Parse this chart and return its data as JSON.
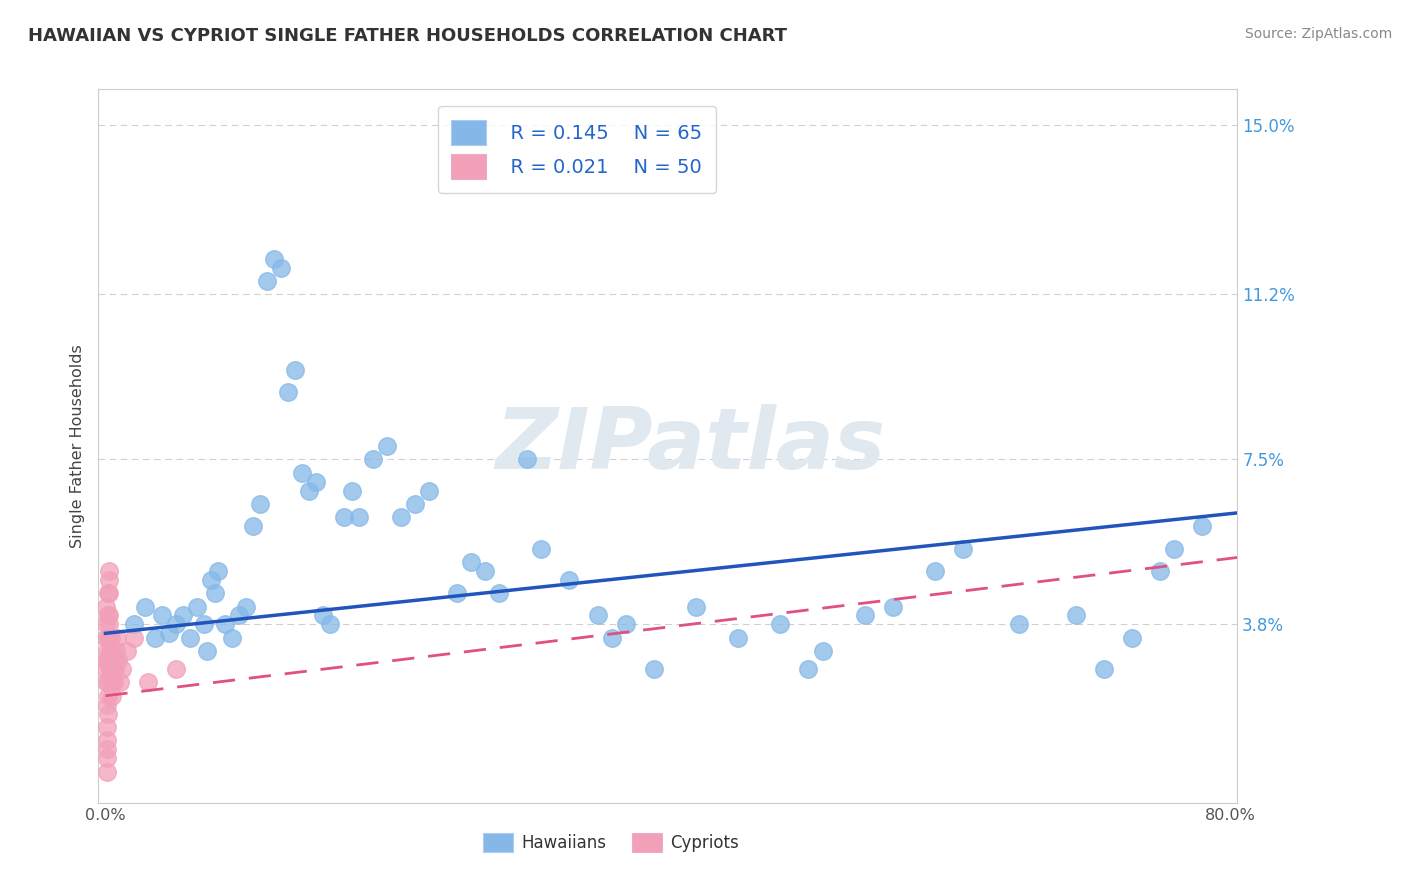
{
  "title": "HAWAIIAN VS CYPRIOT SINGLE FATHER HOUSEHOLDS CORRELATION CHART",
  "source": "Source: ZipAtlas.com",
  "ylabel": "Single Father Households",
  "xlim": [
    -0.005,
    0.805
  ],
  "ylim": [
    -0.002,
    0.158
  ],
  "xticks": [
    0.0,
    0.1,
    0.2,
    0.3,
    0.4,
    0.5,
    0.6,
    0.7,
    0.8
  ],
  "xticklabels": [
    "0.0%",
    "",
    "",
    "",
    "",
    "",
    "",
    "",
    "80.0%"
  ],
  "ytick_vals": [
    0.0,
    0.038,
    0.075,
    0.112,
    0.15
  ],
  "ytick_labels": [
    "",
    "3.8%",
    "7.5%",
    "11.2%",
    "15.0%"
  ],
  "hawaiian_color": "#85b8e8",
  "cypriot_color": "#f2a0b8",
  "hawaiian_R": 0.145,
  "hawaiian_N": 65,
  "cypriot_R": 0.021,
  "cypriot_N": 50,
  "trend_blue": "#2255bb",
  "trend_pink": "#e05080",
  "watermark_text": "ZIPatlas",
  "bg_color": "#ffffff",
  "grid_color": "#d0d0d0",
  "title_color": "#333333",
  "source_color": "#888888",
  "ylabel_color": "#444444",
  "ytick_color": "#4499dd",
  "xtick_color": "#555555",
  "legend_label_color": "#2266cc",
  "hawaiian_x": [
    0.02,
    0.028,
    0.035,
    0.04,
    0.045,
    0.05,
    0.055,
    0.06,
    0.065,
    0.07,
    0.072,
    0.075,
    0.078,
    0.08,
    0.085,
    0.09,
    0.095,
    0.1,
    0.105,
    0.11,
    0.115,
    0.12,
    0.125,
    0.13,
    0.135,
    0.14,
    0.145,
    0.15,
    0.155,
    0.16,
    0.17,
    0.175,
    0.18,
    0.19,
    0.2,
    0.21,
    0.22,
    0.23,
    0.25,
    0.26,
    0.27,
    0.28,
    0.3,
    0.31,
    0.33,
    0.35,
    0.36,
    0.37,
    0.39,
    0.42,
    0.45,
    0.48,
    0.5,
    0.51,
    0.54,
    0.56,
    0.59,
    0.61,
    0.65,
    0.69,
    0.71,
    0.73,
    0.75,
    0.76,
    0.78
  ],
  "hawaiian_y": [
    0.038,
    0.042,
    0.035,
    0.04,
    0.036,
    0.038,
    0.04,
    0.035,
    0.042,
    0.038,
    0.032,
    0.048,
    0.045,
    0.05,
    0.038,
    0.035,
    0.04,
    0.042,
    0.06,
    0.065,
    0.115,
    0.12,
    0.118,
    0.09,
    0.095,
    0.072,
    0.068,
    0.07,
    0.04,
    0.038,
    0.062,
    0.068,
    0.062,
    0.075,
    0.078,
    0.062,
    0.065,
    0.068,
    0.045,
    0.052,
    0.05,
    0.045,
    0.075,
    0.055,
    0.048,
    0.04,
    0.035,
    0.038,
    0.028,
    0.042,
    0.035,
    0.038,
    0.028,
    0.032,
    0.04,
    0.042,
    0.05,
    0.055,
    0.038,
    0.04,
    0.028,
    0.035,
    0.05,
    0.055,
    0.06
  ],
  "cypriot_x": [
    0.0002,
    0.0003,
    0.0004,
    0.0005,
    0.0006,
    0.0007,
    0.0008,
    0.0009,
    0.001,
    0.0011,
    0.0012,
    0.0013,
    0.0014,
    0.0015,
    0.0016,
    0.0017,
    0.0018,
    0.0019,
    0.002,
    0.0021,
    0.0022,
    0.0023,
    0.0024,
    0.0025,
    0.0026,
    0.0027,
    0.0028,
    0.003,
    0.0032,
    0.0034,
    0.0036,
    0.0038,
    0.004,
    0.0042,
    0.0045,
    0.0048,
    0.005,
    0.0055,
    0.006,
    0.0065,
    0.007,
    0.0075,
    0.008,
    0.009,
    0.01,
    0.012,
    0.015,
    0.02,
    0.03,
    0.05
  ],
  "cypriot_y": [
    0.038,
    0.042,
    0.035,
    0.03,
    0.025,
    0.028,
    0.032,
    0.02,
    0.015,
    0.01,
    0.008,
    0.005,
    0.012,
    0.018,
    0.022,
    0.025,
    0.03,
    0.035,
    0.04,
    0.045,
    0.048,
    0.05,
    0.045,
    0.04,
    0.038,
    0.035,
    0.03,
    0.028,
    0.032,
    0.028,
    0.025,
    0.03,
    0.035,
    0.032,
    0.028,
    0.025,
    0.022,
    0.028,
    0.025,
    0.03,
    0.028,
    0.032,
    0.035,
    0.03,
    0.025,
    0.028,
    0.032,
    0.035,
    0.025,
    0.028
  ],
  "trend_hawaii_x0": 0.0,
  "trend_hawaii_x1": 0.805,
  "trend_hawaii_y0": 0.036,
  "trend_hawaii_y1": 0.063,
  "trend_cyprus_x0": 0.0,
  "trend_cyprus_x1": 0.805,
  "trend_cyprus_y0": 0.022,
  "trend_cyprus_y1": 0.053
}
